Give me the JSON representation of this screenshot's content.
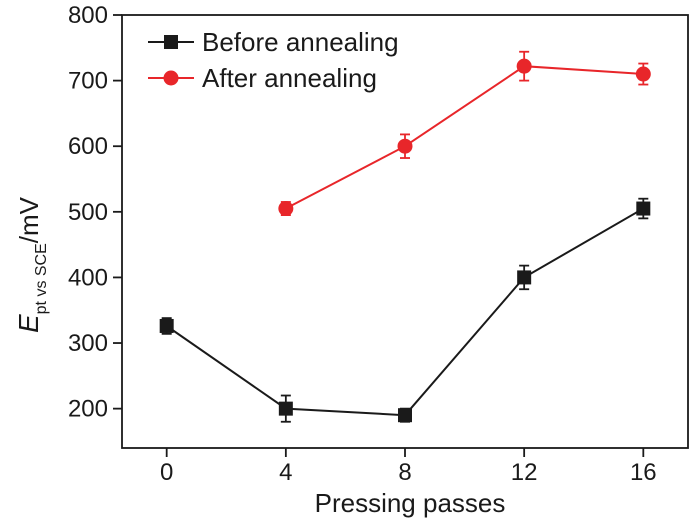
{
  "chart_data": {
    "type": "line",
    "title": "",
    "xlabel": "Pressing passes",
    "ylabel": {
      "main": "E",
      "subscript": "pt vs SCE",
      "unit": "/mV"
    },
    "xlim": [
      -1.5,
      17.5
    ],
    "ylim": [
      140,
      800
    ],
    "x_ticks": [
      "0",
      "4",
      "8",
      "12",
      "16"
    ],
    "y_ticks": [
      "200",
      "300",
      "400",
      "500",
      "600",
      "700",
      "800"
    ],
    "legend_position": "top-left",
    "series": [
      {
        "name": "Before annealing",
        "color": "#1a1a1a",
        "marker": "square",
        "x": [
          0,
          4,
          8,
          12,
          16
        ],
        "y": [
          326,
          200,
          190,
          400,
          505
        ],
        "error": [
          12,
          20,
          10,
          18,
          15
        ]
      },
      {
        "name": "After annealing",
        "color": "#e8262a",
        "marker": "circle",
        "x": [
          4,
          8,
          12,
          16
        ],
        "y": [
          505,
          600,
          722,
          710
        ],
        "error": [
          10,
          18,
          22,
          16
        ]
      }
    ]
  }
}
